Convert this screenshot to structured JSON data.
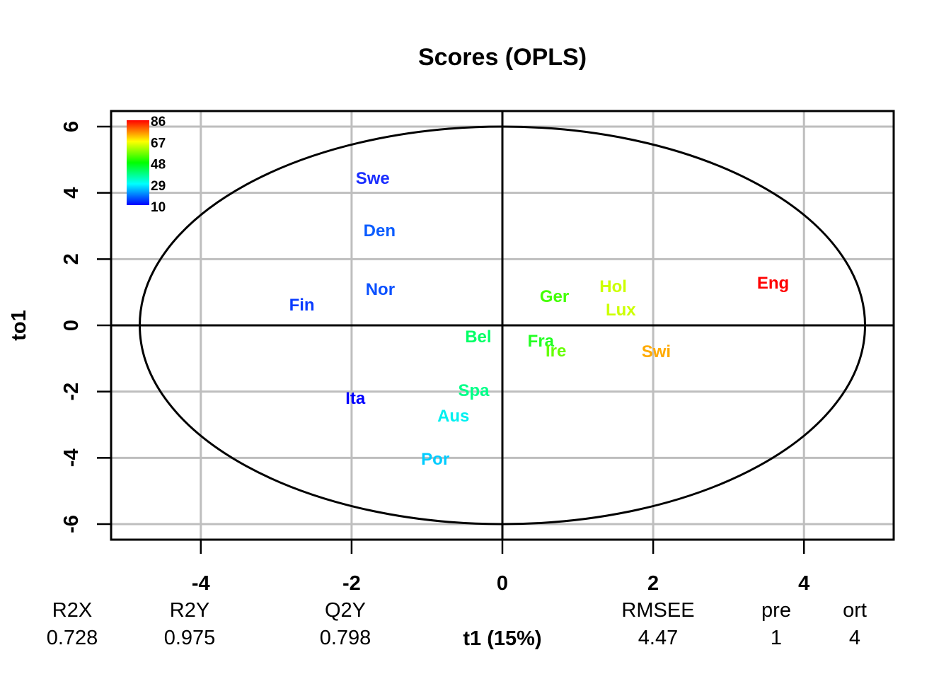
{
  "chart_data": {
    "type": "scatter",
    "title": "Scores (OPLS)",
    "xlabel": "t1 (15%)",
    "ylabel": "to1",
    "xlim": [
      -5.19,
      5.19
    ],
    "ylim": [
      -6.47,
      6.47
    ],
    "xticks": [
      -4,
      -2,
      0,
      2,
      4
    ],
    "yticks": [
      -6,
      -4,
      -2,
      0,
      2,
      4,
      6
    ],
    "grid": true,
    "ellipse": {
      "rx": 4.81,
      "ry": 6.0
    },
    "points": [
      {
        "label": "Swe",
        "x": -1.72,
        "y": 4.46,
        "color": "#1a2dff"
      },
      {
        "label": "Den",
        "x": -1.63,
        "y": 2.88,
        "color": "#0a5cff"
      },
      {
        "label": "Nor",
        "x": -1.62,
        "y": 1.11,
        "color": "#0a50ff"
      },
      {
        "label": "Fin",
        "x": -2.66,
        "y": 0.64,
        "color": "#0a3cff"
      },
      {
        "label": "Ita",
        "x": -1.95,
        "y": -2.18,
        "color": "#0000ff"
      },
      {
        "label": "Aus",
        "x": -0.65,
        "y": -2.71,
        "color": "#00f0f0"
      },
      {
        "label": "Por",
        "x": -0.89,
        "y": -4.01,
        "color": "#00ccff"
      },
      {
        "label": "Spa",
        "x": -0.38,
        "y": -1.94,
        "color": "#00ff88"
      },
      {
        "label": "Bel",
        "x": -0.32,
        "y": -0.32,
        "color": "#00ff66"
      },
      {
        "label": "Fra",
        "x": 0.51,
        "y": -0.45,
        "color": "#22ff22"
      },
      {
        "label": "Ire",
        "x": 0.71,
        "y": -0.75,
        "color": "#66ff00"
      },
      {
        "label": "Ger",
        "x": 0.69,
        "y": 0.9,
        "color": "#44ff00"
      },
      {
        "label": "Hol",
        "x": 1.47,
        "y": 1.2,
        "color": "#ccff00"
      },
      {
        "label": "Lux",
        "x": 1.57,
        "y": 0.49,
        "color": "#ccff00"
      },
      {
        "label": "Swi",
        "x": 2.04,
        "y": -0.77,
        "color": "#ffaa00"
      },
      {
        "label": "Eng",
        "x": 3.59,
        "y": 1.3,
        "color": "#ff0000"
      }
    ],
    "colorbar": {
      "labels": [
        "86",
        "67",
        "48",
        "29",
        "10"
      ]
    },
    "stats": {
      "headers": [
        "R2X",
        "R2Y",
        "Q2Y",
        "RMSEE",
        "pre",
        "ort"
      ],
      "values": [
        "0.728",
        "0.975",
        "0.798",
        "4.47",
        "1",
        "4"
      ]
    }
  }
}
